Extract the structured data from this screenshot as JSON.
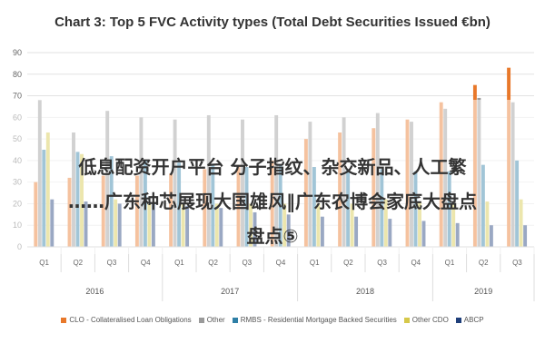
{
  "chart_data": {
    "type": "bar",
    "title": "Chart 3: Top 5 FVC Activity types (Total Debt Securities Issued €bn)",
    "ylim": [
      0,
      90
    ],
    "yticks": [
      0,
      10,
      20,
      30,
      40,
      50,
      60,
      70,
      80,
      90
    ],
    "grid": true,
    "legend_position": "bottom",
    "categories": [
      "Q1",
      "Q2",
      "Q3",
      "Q4",
      "Q1",
      "Q2",
      "Q3",
      "Q4",
      "Q1",
      "Q2",
      "Q3",
      "Q4",
      "Q1",
      "Q2",
      "Q3"
    ],
    "years": [
      {
        "label": "2016",
        "span": 4
      },
      {
        "label": "2017",
        "span": 4
      },
      {
        "label": "2018",
        "span": 4
      },
      {
        "label": "2019",
        "span": 3
      }
    ],
    "series": [
      {
        "name": "CLO - Collateralised Loan Obligations",
        "color": "#e8782a",
        "values": [
          30,
          32,
          33,
          33,
          34,
          36,
          38,
          40,
          50,
          53,
          55,
          59,
          67,
          75,
          83
        ]
      },
      {
        "name": "Other",
        "color": "#9a9a9a",
        "values": [
          68,
          53,
          63,
          60,
          59,
          61,
          59,
          61,
          58,
          60,
          62,
          58,
          64,
          69,
          67
        ]
      },
      {
        "name": "RMBS - Residential Mortgage Backed Securities",
        "color": "#2f7fa6",
        "values": [
          45,
          44,
          42,
          40,
          39,
          38,
          37,
          38,
          37,
          36,
          36,
          35,
          35,
          38,
          40
        ]
      },
      {
        "name": "Other CDO",
        "color": "#d6c84a",
        "values": [
          53,
          43,
          22,
          20,
          20,
          20,
          20,
          20,
          20,
          20,
          22,
          21,
          20,
          21,
          22
        ]
      },
      {
        "name": "ABCP",
        "color": "#1f3f7a",
        "values": [
          22,
          21,
          20,
          20,
          19,
          18,
          16,
          15,
          14,
          14,
          13,
          12,
          11,
          10,
          10
        ]
      }
    ]
  },
  "overlay": {
    "line1": "低息配资开户平台 分子指纹、杂交新品、人工繁",
    "line2": "……广东种芯展现大国雄风‖广东农博会家底大盘点",
    "line3": "盘点⑤"
  }
}
